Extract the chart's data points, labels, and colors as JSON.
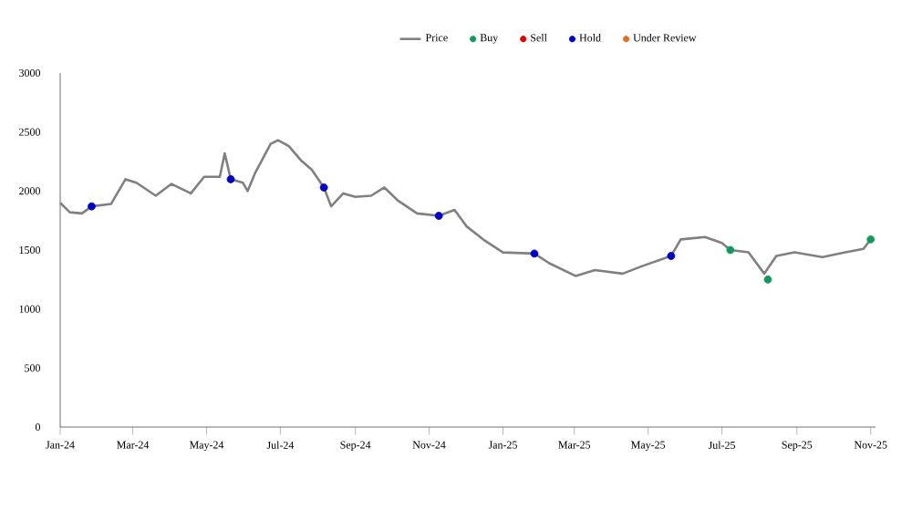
{
  "chart_data": {
    "type": "line",
    "legend": "top",
    "ylim": [
      0,
      3000
    ],
    "yticks": [
      0,
      500,
      1000,
      1500,
      2000,
      2500,
      3000
    ],
    "xlim": [
      "2024-01-01",
      "2025-11-05"
    ],
    "xticks": [
      {
        "value": "2024-01-01",
        "label": "Jan-24"
      },
      {
        "value": "2024-03-01",
        "label": "Mar-24"
      },
      {
        "value": "2024-05-01",
        "label": "May-24"
      },
      {
        "value": "2024-07-01",
        "label": "Jul-24"
      },
      {
        "value": "2024-09-01",
        "label": "Sep-24"
      },
      {
        "value": "2024-11-01",
        "label": "Nov-24"
      },
      {
        "value": "2025-01-01",
        "label": "Jan-25"
      },
      {
        "value": "2025-03-01",
        "label": "Mar-25"
      },
      {
        "value": "2025-05-01",
        "label": "May-25"
      },
      {
        "value": "2025-07-01",
        "label": "Jul-25"
      },
      {
        "value": "2025-09-01",
        "label": "Sep-25"
      },
      {
        "value": "2025-11-01",
        "label": "Nov-25"
      }
    ],
    "series": [
      {
        "name": "Price",
        "color": "#808080",
        "marker": "none",
        "x": [
          "2024-01-01",
          "2024-01-09",
          "2024-01-19",
          "2024-01-27",
          "2024-02-12",
          "2024-02-24",
          "2024-03-04",
          "2024-03-20",
          "2024-04-02",
          "2024-04-18",
          "2024-04-29",
          "2024-05-12",
          "2024-05-16",
          "2024-05-21",
          "2024-05-31",
          "2024-06-04",
          "2024-06-10",
          "2024-06-23",
          "2024-06-29",
          "2024-07-08",
          "2024-07-18",
          "2024-07-27",
          "2024-08-06",
          "2024-08-12",
          "2024-08-22",
          "2024-09-01",
          "2024-09-14",
          "2024-09-25",
          "2024-10-06",
          "2024-10-22",
          "2024-11-09",
          "2024-11-22",
          "2024-12-02",
          "2024-12-17",
          "2025-01-01",
          "2025-01-27",
          "2025-02-08",
          "2025-03-02",
          "2025-03-18",
          "2025-04-10",
          "2025-04-25",
          "2025-05-20",
          "2025-05-28",
          "2025-06-17",
          "2025-07-01",
          "2025-07-08",
          "2025-07-23",
          "2025-08-05",
          "2025-08-15",
          "2025-08-30",
          "2025-09-22",
          "2025-10-11",
          "2025-10-26",
          "2025-11-01"
        ],
        "values": [
          1900,
          1820,
          1810,
          1870,
          1890,
          2100,
          2070,
          1960,
          2060,
          1980,
          2120,
          2120,
          2320,
          2100,
          2070,
          2000,
          2150,
          2400,
          2430,
          2380,
          2260,
          2180,
          2030,
          1870,
          1980,
          1950,
          1960,
          2030,
          1920,
          1810,
          1790,
          1840,
          1700,
          1580,
          1480,
          1470,
          1390,
          1280,
          1330,
          1300,
          1360,
          1450,
          1590,
          1610,
          1560,
          1500,
          1480,
          1300,
          1450,
          1480,
          1440,
          1480,
          1510,
          1590
        ]
      },
      {
        "name": "Buy",
        "type": "scatter",
        "color": "#109a5a",
        "marker": "circle",
        "x": [
          "2025-07-08",
          "2025-08-08",
          "2025-11-01"
        ],
        "values": [
          1500,
          1250,
          1590
        ]
      },
      {
        "name": "Sell",
        "type": "scatter",
        "color": "#e00000",
        "marker": "circle"
      },
      {
        "name": "Hold",
        "type": "scatter",
        "color": "#0000cc",
        "marker": "circle",
        "x": [
          "2024-01-27",
          "2024-05-21",
          "2024-08-06",
          "2024-11-09",
          "2025-01-27",
          "2025-05-20"
        ],
        "values": [
          1870,
          2100,
          2030,
          1790,
          1470,
          1450
        ]
      },
      {
        "name": "Under Review",
        "type": "scatter",
        "color": "#e07020",
        "marker": "circle"
      }
    ]
  }
}
